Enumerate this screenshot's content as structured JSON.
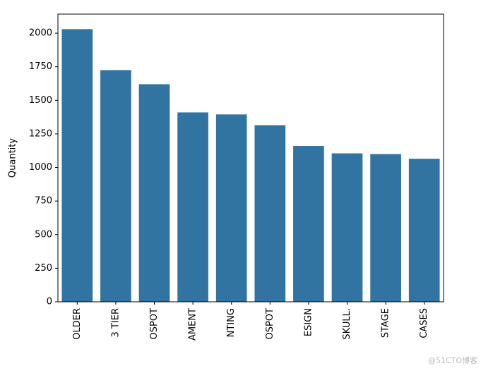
{
  "chart_data": {
    "type": "bar",
    "y_label": "Quantity",
    "categories": [
      "OLDER",
      "3 TIER",
      "OSPOT",
      "AMENT",
      "NTING",
      "OSPOT",
      "ESIGN",
      "SKULL.",
      "STAGE",
      "CASES"
    ],
    "values": [
      2030,
      1725,
      1620,
      1410,
      1395,
      1315,
      1160,
      1105,
      1100,
      1065
    ],
    "color": "#3274a1",
    "ylim": [
      0,
      2142
    ],
    "yticks": [
      0,
      250,
      500,
      750,
      1000,
      1250,
      1500,
      1750,
      2000
    ],
    "grid": false
  },
  "watermark": "@51CTO博客"
}
